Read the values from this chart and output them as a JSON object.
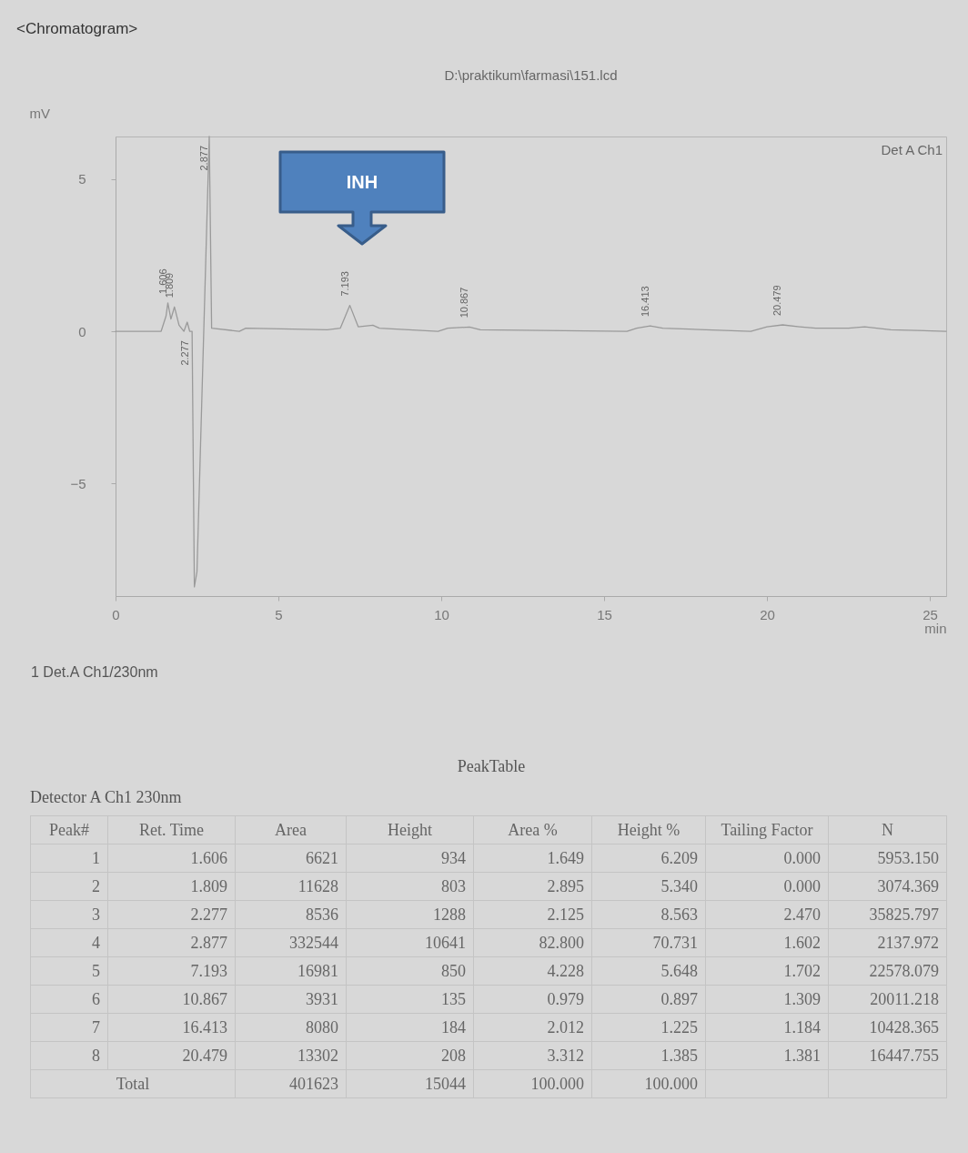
{
  "chart_data": {
    "type": "line",
    "title": "<Chromatogram>",
    "subtitle": "D:\\praktikum\\farmasi\\151.lcd",
    "xlabel": "min",
    "ylabel": "mV",
    "xlim": [
      0,
      25.5
    ],
    "xticks": [
      0,
      5,
      10,
      15,
      20,
      25
    ],
    "ylim": [
      -8.7,
      6.4
    ],
    "yticks": [
      -5,
      0,
      5
    ],
    "marker": "none",
    "line_style": "solid",
    "series": [
      {
        "color": "#9a9a9a",
        "x": [
          0,
          1.4,
          1.55,
          1.606,
          1.7,
          1.809,
          1.95,
          2.1,
          2.2,
          2.277,
          2.35,
          2.42,
          2.5,
          2.877,
          2.95,
          3.8,
          4.0,
          6.5,
          6.9,
          7.193,
          7.45,
          7.9,
          8.1,
          9.9,
          10.2,
          10.867,
          11.2,
          15.7,
          16.0,
          16.413,
          16.8,
          19.5,
          20.0,
          20.479,
          21.0,
          21.5,
          22.5,
          23.0,
          23.8,
          25.5
        ],
        "values": [
          0,
          0,
          0.5,
          0.93,
          0.4,
          0.8,
          0.2,
          0,
          0.3,
          0,
          0,
          -8.4,
          -7.9,
          6.4,
          0.1,
          0,
          0.1,
          0.05,
          0.1,
          0.85,
          0.15,
          0.2,
          0.1,
          0,
          0.1,
          0.14,
          0.05,
          0,
          0.1,
          0.18,
          0.1,
          0,
          0.15,
          0.21,
          0.15,
          0.1,
          0.1,
          0.15,
          0.05,
          0
        ]
      }
    ],
    "annotations": [
      "Det A Ch1",
      "1  Det.A Ch1/230nm",
      "PeakTable",
      "Detector A Ch1 230nm",
      "INH",
      "Peak#",
      "Ret. Time",
      "Area",
      "Height",
      "Area %",
      "Height %",
      "Tailing Factor",
      "N",
      "1",
      "1.606",
      "6621",
      "934",
      "1.649",
      "6.209",
      "0.000",
      "5953.150",
      "2",
      "1.809",
      "11628",
      "803",
      "2.895",
      "5.340",
      "0.000",
      "3074.369",
      "3",
      "2.277",
      "8536",
      "1288",
      "2.125",
      "8.563",
      "2.470",
      "35825.797",
      "4",
      "2.877",
      "332544",
      "10641",
      "82.800",
      "70.731",
      "1.602",
      "2137.972",
      "5",
      "7.193",
      "16981",
      "850",
      "4.228",
      "5.648",
      "1.702",
      "22578.079",
      "6",
      "10.867",
      "3931",
      "135",
      "0.979",
      "0.897",
      "1.309",
      "20011.218",
      "7",
      "16.413",
      "8080",
      "184",
      "2.012",
      "1.225",
      "1.184",
      "10428.365",
      "8",
      "20.479",
      "13302",
      "208",
      "3.312",
      "1.385",
      "1.381",
      "16447.755",
      "Total",
      "401623",
      "15044",
      "100.000",
      "100.000",
      {
        "text": "1.606",
        "x": 1.606,
        "y": 0.93
      },
      {
        "text": "1.809",
        "x": 1.809,
        "y": 0.8
      },
      {
        "text": "2.277",
        "x": 2.277,
        "y": 0
      },
      {
        "text": "2.877",
        "x": 2.877,
        "y": 6.4
      },
      {
        "text": "7.193",
        "x": 7.193,
        "y": 0.85
      },
      {
        "text": "10.867",
        "x": 10.867,
        "y": 0.14
      },
      {
        "text": "16.413",
        "x": 16.413,
        "y": 0.18
      },
      {
        "text": "20.479",
        "x": 20.479,
        "y": 0.21
      }
    ]
  }
}
